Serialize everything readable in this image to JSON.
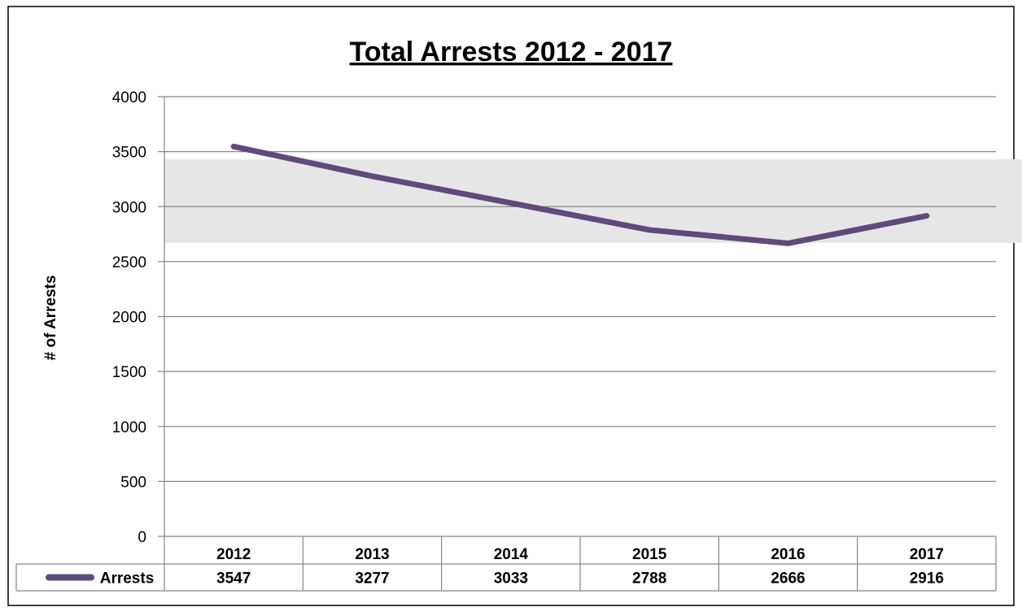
{
  "chart_data": {
    "type": "line",
    "title": "Total Arrests 2012 - 2017",
    "xlabel": "",
    "ylabel": "# of Arrests",
    "categories": [
      "2012",
      "2013",
      "2014",
      "2015",
      "2016",
      "2017"
    ],
    "series": [
      {
        "name": "Arrests",
        "values": [
          3547,
          3277,
          3033,
          2788,
          2666,
          2916
        ],
        "color": "#604A7B"
      }
    ],
    "ylim": [
      0,
      4000
    ],
    "yticks": [
      0,
      500,
      1000,
      1500,
      2000,
      2500,
      3000,
      3500,
      4000
    ],
    "highlight_band": [
      2670,
      3430
    ],
    "grid": true,
    "data_table": true,
    "colors": {
      "line": "#604A7B",
      "band": "#E6E6E6",
      "grid": "#868686",
      "border": "#000000"
    }
  }
}
